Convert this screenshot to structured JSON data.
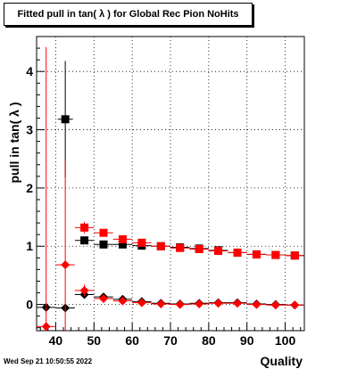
{
  "title": "Fitted pull in tan( λ ) for Global Rec Pion NoHits",
  "footer_date": "Wed Sep 21 10:50:55 2022",
  "chart_data": {
    "type": "scatter",
    "title": "Fitted pull in tan( λ ) for Global Rec Pion NoHits",
    "xlabel": "Quality",
    "ylabel": "pull in tan( λ )",
    "xlim": [
      35,
      105
    ],
    "ylim": [
      -0.45,
      4.6
    ],
    "xticks": [
      40,
      50,
      60,
      70,
      80,
      90,
      100
    ],
    "yticks": [
      0,
      1,
      2,
      3,
      4
    ],
    "grid": true,
    "series": [
      {
        "color": "#000000",
        "marker": "square",
        "points": [
          {
            "x": 42.5,
            "y": 3.18,
            "yerr": 1.0,
            "xerr": 2.0
          },
          {
            "x": 47.5,
            "y": 1.1,
            "yerr": 0.05,
            "xerr": 2.5
          },
          {
            "x": 52.5,
            "y": 1.03,
            "yerr": 0.03,
            "xerr": 2.5
          },
          {
            "x": 57.5,
            "y": 1.03,
            "yerr": 0.03,
            "xerr": 2.5
          },
          {
            "x": 62.5,
            "y": 1.01,
            "yerr": 0.03,
            "xerr": 2.5
          },
          {
            "x": 67.5,
            "y": 1.0,
            "yerr": 0.03,
            "xerr": 2.5
          },
          {
            "x": 72.5,
            "y": 0.98,
            "yerr": 0.03,
            "xerr": 2.5
          },
          {
            "x": 77.5,
            "y": 0.96,
            "yerr": 0.03,
            "xerr": 2.5
          },
          {
            "x": 82.5,
            "y": 0.93,
            "yerr": 0.03,
            "xerr": 2.5
          },
          {
            "x": 87.5,
            "y": 0.89,
            "yerr": 0.03,
            "xerr": 2.5
          },
          {
            "x": 92.5,
            "y": 0.86,
            "yerr": 0.03,
            "xerr": 2.5
          },
          {
            "x": 97.5,
            "y": 0.85,
            "yerr": 0.03,
            "xerr": 2.5
          },
          {
            "x": 102.5,
            "y": 0.84,
            "yerr": 0.03,
            "xerr": 2.5
          }
        ]
      },
      {
        "color": "#ff0000",
        "marker": "square",
        "points": [
          {
            "x": 47.5,
            "y": 1.32,
            "yerr": 0.1,
            "xerr": 2.5
          },
          {
            "x": 52.5,
            "y": 1.23,
            "yerr": 0.05,
            "xerr": 2.5
          },
          {
            "x": 57.5,
            "y": 1.12,
            "yerr": 0.04,
            "xerr": 2.5
          },
          {
            "x": 62.5,
            "y": 1.06,
            "yerr": 0.03,
            "xerr": 2.5
          },
          {
            "x": 67.5,
            "y": 1.0,
            "yerr": 0.03,
            "xerr": 2.5
          },
          {
            "x": 72.5,
            "y": 0.97,
            "yerr": 0.03,
            "xerr": 2.5
          },
          {
            "x": 77.5,
            "y": 0.95,
            "yerr": 0.03,
            "xerr": 2.5
          },
          {
            "x": 82.5,
            "y": 0.92,
            "yerr": 0.03,
            "xerr": 2.5
          },
          {
            "x": 87.5,
            "y": 0.89,
            "yerr": 0.03,
            "xerr": 2.5
          },
          {
            "x": 92.5,
            "y": 0.86,
            "yerr": 0.03,
            "xerr": 2.5
          },
          {
            "x": 97.5,
            "y": 0.85,
            "yerr": 0.03,
            "xerr": 2.5
          },
          {
            "x": 102.5,
            "y": 0.84,
            "yerr": 0.03,
            "xerr": 2.5
          }
        ]
      },
      {
        "color": "#000000",
        "marker": "diamond",
        "points": [
          {
            "x": 37.5,
            "y": -0.05,
            "yerr": 0.0,
            "xerr": 2.5
          },
          {
            "x": 42.5,
            "y": -0.06,
            "yerr": 0.05,
            "xerr": 2.5
          },
          {
            "x": 47.5,
            "y": 0.17,
            "yerr": 0.06,
            "xerr": 2.5
          },
          {
            "x": 52.5,
            "y": 0.13,
            "yerr": 0.03,
            "xerr": 2.5
          },
          {
            "x": 57.5,
            "y": 0.09,
            "yerr": 0.03,
            "xerr": 2.5
          },
          {
            "x": 62.5,
            "y": 0.05,
            "yerr": 0.03,
            "xerr": 2.5
          },
          {
            "x": 67.5,
            "y": 0.02,
            "yerr": 0.02,
            "xerr": 2.5
          },
          {
            "x": 72.5,
            "y": 0.01,
            "yerr": 0.02,
            "xerr": 2.5
          },
          {
            "x": 77.5,
            "y": 0.02,
            "yerr": 0.02,
            "xerr": 2.5
          },
          {
            "x": 82.5,
            "y": 0.03,
            "yerr": 0.02,
            "xerr": 2.5
          },
          {
            "x": 87.5,
            "y": 0.03,
            "yerr": 0.02,
            "xerr": 2.5
          },
          {
            "x": 92.5,
            "y": 0.01,
            "yerr": 0.02,
            "xerr": 2.5
          },
          {
            "x": 97.5,
            "y": 0.0,
            "yerr": 0.02,
            "xerr": 2.5
          },
          {
            "x": 102.5,
            "y": -0.01,
            "yerr": 0.02,
            "xerr": 2.5
          }
        ]
      },
      {
        "color": "#ff0000",
        "marker": "diamond",
        "points": [
          {
            "x": 37.5,
            "y": -0.38,
            "yerr": 4.8,
            "xerr": 2.5
          },
          {
            "x": 42.5,
            "y": 0.68,
            "yerr": 1.8,
            "xerr": 2.5
          },
          {
            "x": 47.5,
            "y": 0.24,
            "yerr": 0.1,
            "xerr": 2.5
          },
          {
            "x": 52.5,
            "y": 0.1,
            "yerr": 0.04,
            "xerr": 2.5
          },
          {
            "x": 57.5,
            "y": 0.06,
            "yerr": 0.03,
            "xerr": 2.5
          },
          {
            "x": 62.5,
            "y": 0.03,
            "yerr": 0.02,
            "xerr": 2.5
          },
          {
            "x": 67.5,
            "y": 0.01,
            "yerr": 0.02,
            "xerr": 2.5
          },
          {
            "x": 72.5,
            "y": 0.0,
            "yerr": 0.02,
            "xerr": 2.5
          },
          {
            "x": 77.5,
            "y": 0.01,
            "yerr": 0.02,
            "xerr": 2.5
          },
          {
            "x": 82.5,
            "y": 0.02,
            "yerr": 0.02,
            "xerr": 2.5
          },
          {
            "x": 87.5,
            "y": 0.02,
            "yerr": 0.02,
            "xerr": 2.5
          },
          {
            "x": 92.5,
            "y": 0.0,
            "yerr": 0.02,
            "xerr": 2.5
          },
          {
            "x": 97.5,
            "y": -0.01,
            "yerr": 0.02,
            "xerr": 2.5
          },
          {
            "x": 102.5,
            "y": -0.01,
            "yerr": 0.02,
            "xerr": 2.5
          }
        ]
      }
    ]
  }
}
